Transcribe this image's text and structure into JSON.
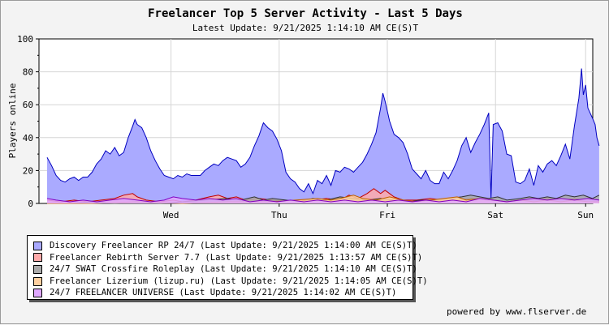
{
  "chart_data": {
    "type": "area",
    "title": "Freelancer Top 5 Server Activity - Last 5 Days",
    "subtitle": "Latest Update: 9/21/2025 1:14:10 AM CE(S)T",
    "ylabel": "Players online",
    "xlabel": "",
    "ylim": [
      0,
      100
    ],
    "yticks": [
      0,
      20,
      40,
      60,
      80,
      100
    ],
    "xlim": [
      0,
      120
    ],
    "x_ticks": [
      {
        "label": "Wed",
        "x": 27.5
      },
      {
        "label": "Thu",
        "x": 51.5
      },
      {
        "label": "Fri",
        "x": 75.5
      },
      {
        "label": "Sat",
        "x": 99.5
      },
      {
        "label": "Sun",
        "x": 119.5
      }
    ],
    "x_unit": "hours",
    "grid": true,
    "legend_position": "bottom-left",
    "series": [
      {
        "name": "Discovery Freelancer RP 24/7 (Last Update: 9/21/2025 1:14:00 AM CE(S)T)",
        "color": "#aaaaff",
        "line_color": "#0000c0",
        "points": [
          [
            0,
            28
          ],
          [
            1,
            23
          ],
          [
            2,
            17
          ],
          [
            3,
            14
          ],
          [
            4,
            13
          ],
          [
            5,
            15
          ],
          [
            6,
            16
          ],
          [
            7,
            14
          ],
          [
            8,
            16
          ],
          [
            9,
            16
          ],
          [
            10,
            19
          ],
          [
            11,
            24
          ],
          [
            12,
            27
          ],
          [
            13,
            32
          ],
          [
            14,
            30
          ],
          [
            15,
            34
          ],
          [
            16,
            29
          ],
          [
            17,
            31
          ],
          [
            18,
            40
          ],
          [
            19,
            47
          ],
          [
            19.5,
            51
          ],
          [
            20,
            48
          ],
          [
            21,
            46
          ],
          [
            22,
            40
          ],
          [
            23,
            32
          ],
          [
            24,
            26
          ],
          [
            25,
            21
          ],
          [
            26,
            17
          ],
          [
            27,
            16
          ],
          [
            28,
            15
          ],
          [
            29,
            17
          ],
          [
            30,
            16
          ],
          [
            31,
            18
          ],
          [
            32,
            17
          ],
          [
            33,
            17
          ],
          [
            34,
            17
          ],
          [
            35,
            20
          ],
          [
            36,
            22
          ],
          [
            37,
            24
          ],
          [
            38,
            23
          ],
          [
            39,
            26
          ],
          [
            40,
            28
          ],
          [
            41,
            27
          ],
          [
            42,
            26
          ],
          [
            43,
            22
          ],
          [
            44,
            24
          ],
          [
            45,
            28
          ],
          [
            46,
            35
          ],
          [
            47,
            41
          ],
          [
            48,
            49
          ],
          [
            49,
            46
          ],
          [
            50,
            44
          ],
          [
            51,
            39
          ],
          [
            52,
            32
          ],
          [
            53,
            19
          ],
          [
            54,
            15
          ],
          [
            55,
            13
          ],
          [
            56,
            9
          ],
          [
            57,
            7
          ],
          [
            58,
            12
          ],
          [
            59,
            6
          ],
          [
            60,
            14
          ],
          [
            61,
            12
          ],
          [
            62,
            17
          ],
          [
            63,
            11
          ],
          [
            64,
            20
          ],
          [
            65,
            19
          ],
          [
            66,
            22
          ],
          [
            67,
            21
          ],
          [
            68,
            19
          ],
          [
            69,
            22
          ],
          [
            70,
            25
          ],
          [
            71,
            30
          ],
          [
            72,
            36
          ],
          [
            73,
            43
          ],
          [
            74,
            58
          ],
          [
            74.5,
            67
          ],
          [
            75,
            62
          ],
          [
            76,
            50
          ],
          [
            77,
            42
          ],
          [
            78,
            40
          ],
          [
            79,
            37
          ],
          [
            80,
            30
          ],
          [
            81,
            21
          ],
          [
            82,
            18
          ],
          [
            83,
            15
          ],
          [
            84,
            20
          ],
          [
            85,
            14
          ],
          [
            86,
            12
          ],
          [
            87,
            12
          ],
          [
            88,
            19
          ],
          [
            89,
            15
          ],
          [
            90,
            20
          ],
          [
            91,
            26
          ],
          [
            92,
            35
          ],
          [
            93,
            40
          ],
          [
            94,
            31
          ],
          [
            95,
            37
          ],
          [
            96,
            42
          ],
          [
            97,
            48
          ],
          [
            98,
            55
          ],
          [
            98.5,
            3
          ],
          [
            99,
            48
          ],
          [
            100,
            49
          ],
          [
            101,
            44
          ],
          [
            102,
            30
          ],
          [
            103,
            29
          ],
          [
            104,
            13
          ],
          [
            105,
            12
          ],
          [
            106,
            14
          ],
          [
            107,
            21
          ],
          [
            108,
            11
          ],
          [
            109,
            23
          ],
          [
            110,
            19
          ],
          [
            111,
            24
          ],
          [
            112,
            26
          ],
          [
            113,
            23
          ],
          [
            114,
            29
          ],
          [
            115,
            36
          ],
          [
            116,
            27
          ],
          [
            117,
            47
          ],
          [
            118,
            64
          ],
          [
            118.6,
            82
          ],
          [
            119,
            66
          ],
          [
            119.5,
            72
          ],
          [
            120,
            58
          ],
          [
            121,
            52
          ],
          [
            121.6,
            48
          ],
          [
            122,
            40
          ],
          [
            122.5,
            35
          ]
        ]
      },
      {
        "name": "Freelancer Rebirth Server 7.7 (Last Update: 9/21/2025 1:13:57 AM CE(S)T)",
        "color": "#ffaaaa",
        "line_color": "#c00000",
        "points": [
          [
            0,
            2
          ],
          [
            3,
            1
          ],
          [
            6,
            2
          ],
          [
            9,
            1
          ],
          [
            12,
            2
          ],
          [
            15,
            3
          ],
          [
            17,
            5
          ],
          [
            19,
            6
          ],
          [
            20,
            4
          ],
          [
            22,
            2
          ],
          [
            25,
            1
          ],
          [
            28,
            2
          ],
          [
            30,
            1
          ],
          [
            33,
            2
          ],
          [
            36,
            4
          ],
          [
            38,
            5
          ],
          [
            40,
            3
          ],
          [
            42,
            4
          ],
          [
            44,
            2
          ],
          [
            47,
            3
          ],
          [
            50,
            2
          ],
          [
            53,
            1
          ],
          [
            56,
            2
          ],
          [
            59,
            2
          ],
          [
            62,
            3
          ],
          [
            65,
            2
          ],
          [
            67,
            5
          ],
          [
            69,
            3
          ],
          [
            71,
            6
          ],
          [
            72.5,
            9
          ],
          [
            74,
            6
          ],
          [
            75,
            8
          ],
          [
            77,
            4
          ],
          [
            79,
            2
          ],
          [
            82,
            2
          ],
          [
            85,
            3
          ],
          [
            88,
            2
          ],
          [
            91,
            2
          ],
          [
            94,
            3
          ],
          [
            96,
            2
          ],
          [
            99,
            2
          ],
          [
            102,
            1
          ],
          [
            105,
            2
          ],
          [
            108,
            2
          ],
          [
            111,
            3
          ],
          [
            114,
            2
          ],
          [
            117,
            3
          ],
          [
            119,
            2
          ],
          [
            122.5,
            2
          ]
        ]
      },
      {
        "name": "24/7 SWAT Crossfire Roleplay (Last Update: 9/21/2025 1:14:10 AM CE(S)T)",
        "color": "#aaaaaa",
        "line_color": "#303030",
        "points": [
          [
            0,
            0
          ],
          [
            5,
            0
          ],
          [
            10,
            1
          ],
          [
            15,
            0
          ],
          [
            20,
            1
          ],
          [
            25,
            0
          ],
          [
            30,
            1
          ],
          [
            35,
            2
          ],
          [
            40,
            3
          ],
          [
            43,
            2
          ],
          [
            46,
            4
          ],
          [
            48,
            2
          ],
          [
            50,
            3
          ],
          [
            53,
            2
          ],
          [
            56,
            1
          ],
          [
            59,
            3
          ],
          [
            62,
            2
          ],
          [
            65,
            4
          ],
          [
            68,
            3
          ],
          [
            71,
            2
          ],
          [
            74,
            3
          ],
          [
            77,
            2
          ],
          [
            80,
            1
          ],
          [
            83,
            2
          ],
          [
            86,
            2
          ],
          [
            89,
            3
          ],
          [
            92,
            4
          ],
          [
            94,
            5
          ],
          [
            96,
            4
          ],
          [
            98,
            3
          ],
          [
            100,
            4
          ],
          [
            102,
            2
          ],
          [
            105,
            3
          ],
          [
            107,
            4
          ],
          [
            109,
            3
          ],
          [
            111,
            4
          ],
          [
            113,
            3
          ],
          [
            115,
            5
          ],
          [
            117,
            4
          ],
          [
            119,
            5
          ],
          [
            121,
            3
          ],
          [
            122.5,
            5
          ]
        ]
      },
      {
        "name": "Freelancer Lizerium (lizup.ru) (Last Update: 9/21/2025 1:14:05 AM CE(S)T)",
        "color": "#ffd0a0",
        "line_color": "#c06000",
        "points": [
          [
            0,
            0
          ],
          [
            10,
            0
          ],
          [
            20,
            1
          ],
          [
            30,
            0
          ],
          [
            40,
            1
          ],
          [
            50,
            1
          ],
          [
            55,
            2
          ],
          [
            60,
            3
          ],
          [
            63,
            2
          ],
          [
            65,
            3
          ],
          [
            68,
            5
          ],
          [
            70,
            3
          ],
          [
            73,
            2
          ],
          [
            76,
            4
          ],
          [
            79,
            2
          ],
          [
            82,
            1
          ],
          [
            85,
            2
          ],
          [
            88,
            3
          ],
          [
            91,
            4
          ],
          [
            93,
            2
          ],
          [
            96,
            3
          ],
          [
            99,
            2
          ],
          [
            102,
            1
          ],
          [
            105,
            2
          ],
          [
            108,
            1
          ],
          [
            111,
            2
          ],
          [
            114,
            1
          ],
          [
            117,
            2
          ],
          [
            120,
            1
          ],
          [
            122.5,
            1
          ]
        ]
      },
      {
        "name": "24/7 FREELANCER UNIVERSE (Last Update: 9/21/2025 1:14:02 AM CE(S)T)",
        "color": "#e0a8ff",
        "line_color": "#8000c0",
        "points": [
          [
            0,
            3
          ],
          [
            2,
            2
          ],
          [
            5,
            1
          ],
          [
            8,
            2
          ],
          [
            11,
            1
          ],
          [
            14,
            2
          ],
          [
            17,
            3
          ],
          [
            20,
            2
          ],
          [
            23,
            1
          ],
          [
            26,
            2
          ],
          [
            28,
            4
          ],
          [
            30,
            3
          ],
          [
            33,
            2
          ],
          [
            36,
            3
          ],
          [
            39,
            2
          ],
          [
            42,
            3
          ],
          [
            45,
            1
          ],
          [
            48,
            2
          ],
          [
            51,
            1
          ],
          [
            54,
            2
          ],
          [
            57,
            1
          ],
          [
            60,
            2
          ],
          [
            63,
            1
          ],
          [
            66,
            2
          ],
          [
            69,
            1
          ],
          [
            72,
            2
          ],
          [
            75,
            1
          ],
          [
            78,
            2
          ],
          [
            81,
            1
          ],
          [
            84,
            2
          ],
          [
            87,
            1
          ],
          [
            90,
            2
          ],
          [
            93,
            1
          ],
          [
            96,
            3
          ],
          [
            99,
            2
          ],
          [
            102,
            1
          ],
          [
            105,
            2
          ],
          [
            108,
            3
          ],
          [
            111,
            2
          ],
          [
            114,
            3
          ],
          [
            117,
            2
          ],
          [
            120,
            3
          ],
          [
            122.5,
            2
          ]
        ]
      }
    ]
  },
  "footer": {
    "credit": "powered by www.flserver.de"
  }
}
